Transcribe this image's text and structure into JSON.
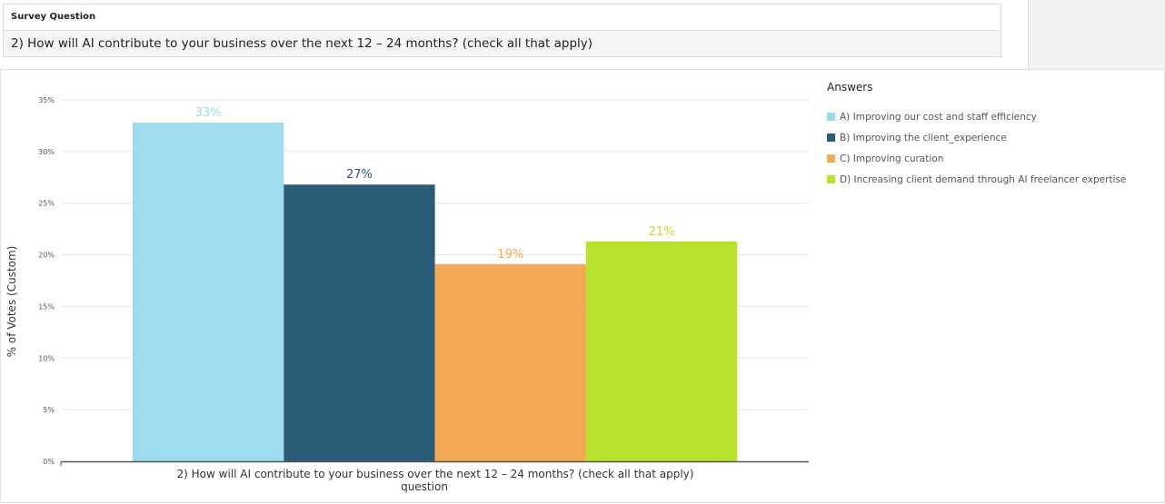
{
  "survey": {
    "header": "Survey Question",
    "question": "2) How will AI contribute to your business over the next 12 – 24 months? (check all that apply)"
  },
  "chart_data": {
    "type": "bar",
    "title": "",
    "xlabel": "2) How will AI contribute to your business over the next 12 – 24 months? (check all that apply)",
    "xlabel_sub": "question",
    "ylabel": "% of Votes (Custom)",
    "ylim": [
      0,
      35
    ],
    "yticks": [
      0,
      5,
      10,
      15,
      20,
      25,
      30,
      35
    ],
    "ytick_labels": [
      "0%",
      "5%",
      "10%",
      "15%",
      "20%",
      "25%",
      "30%",
      "35%"
    ],
    "grid": true,
    "legend_title": "Answers",
    "legend_position": "right",
    "series": [
      {
        "name": "A) Improving our cost and staff efficiency",
        "value": 32.8,
        "label": "33%",
        "color": "#9edbef",
        "label_color": "#9edbef"
      },
      {
        "name": "B) Improving the client_experience",
        "value": 26.8,
        "label": "27%",
        "color": "#2a5c78",
        "label_color": "#2a5c78"
      },
      {
        "name": "C) Improving curation",
        "value": 19.1,
        "label": "19%",
        "color": "#f4a955",
        "label_color": "#f4a955"
      },
      {
        "name": "D) Increasing client demand through AI freelancer expertise",
        "value": 21.3,
        "label": "21%",
        "color": "#b7e22e",
        "label_color": "#b7e22e"
      }
    ]
  }
}
